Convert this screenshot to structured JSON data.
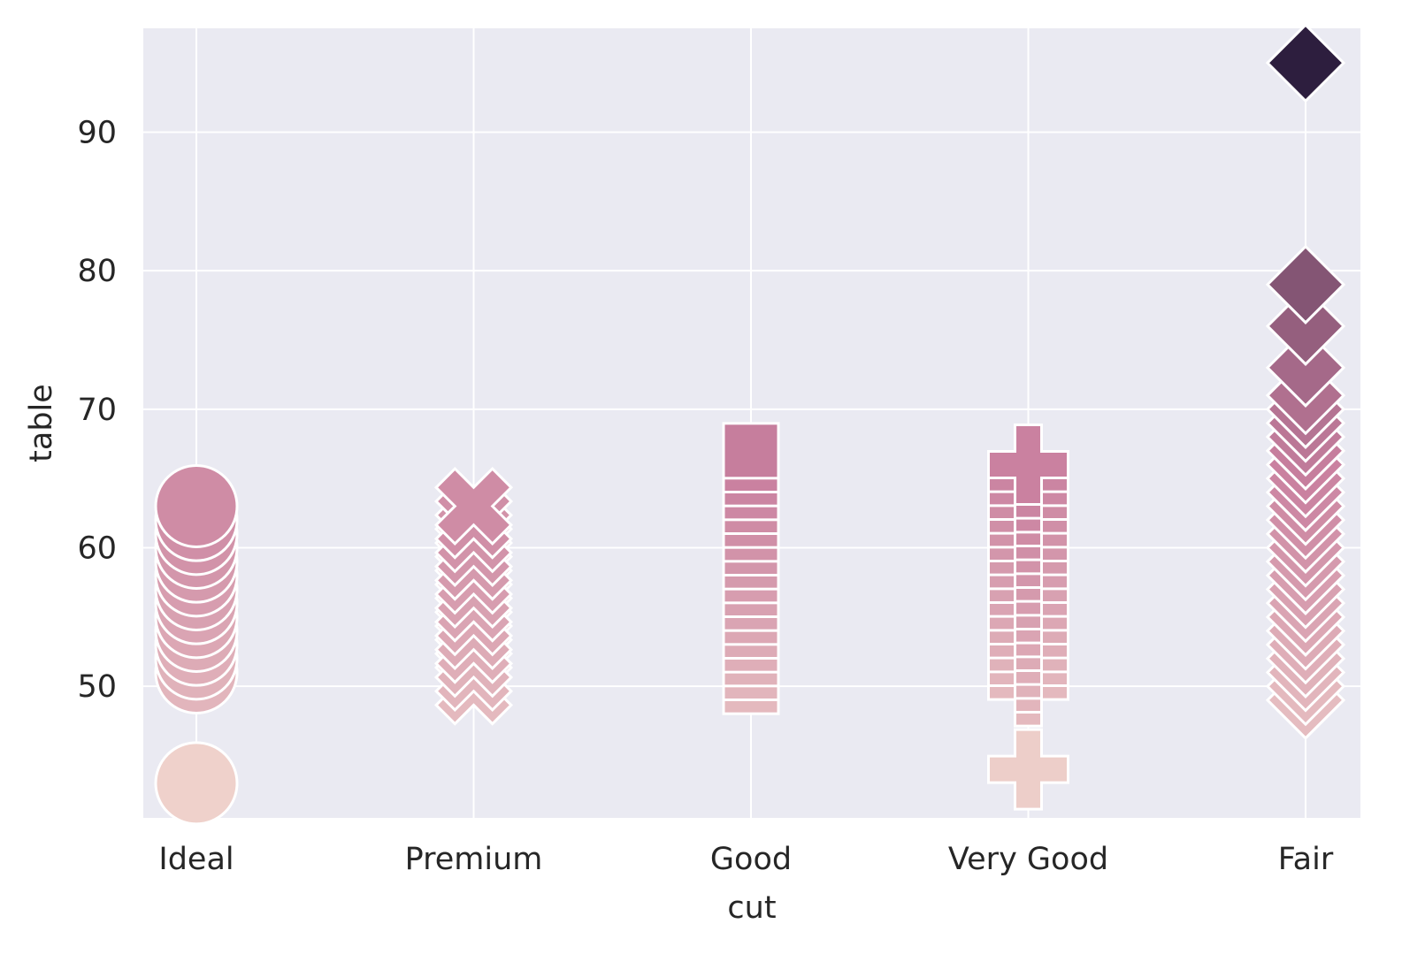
{
  "chart_data": {
    "type": "scatter",
    "title": "",
    "xlabel": "cut",
    "ylabel": "table",
    "categories": [
      "Ideal",
      "Premium",
      "Good",
      "Very Good",
      "Fair"
    ],
    "ylim": [
      40.5,
      97.5
    ],
    "yticks": [
      50,
      60,
      70,
      80,
      90
    ],
    "grid": true,
    "legend": "none",
    "background_color": "#eaeaf2",
    "grid_color": "#ffffff",
    "color_scale": {
      "min": 43,
      "max": 95,
      "low": "#efd1cb",
      "mid": "#c9809f",
      "high": "#2d1e3e"
    },
    "series": [
      {
        "category": "Ideal",
        "marker": "circle",
        "values": [
          43,
          51,
          52,
          53,
          54,
          55,
          56,
          57,
          58,
          59,
          60,
          61,
          62,
          63
        ]
      },
      {
        "category": "Premium",
        "marker": "x",
        "values": [
          50,
          51,
          52,
          53,
          54,
          55,
          56,
          57,
          58,
          59,
          60,
          61,
          62,
          63
        ]
      },
      {
        "category": "Good",
        "marker": "square",
        "values": [
          50,
          51,
          52,
          53,
          54,
          55,
          56,
          57,
          58,
          59,
          60,
          61,
          62,
          63,
          64,
          65,
          66,
          67
        ]
      },
      {
        "category": "Very Good",
        "marker": "plus",
        "values": [
          44,
          50,
          51,
          52,
          53,
          54,
          55,
          56,
          57,
          58,
          59,
          60,
          61,
          62,
          63,
          64,
          65,
          66
        ]
      },
      {
        "category": "Fair",
        "marker": "diamond",
        "values": [
          49,
          50,
          51,
          52,
          53,
          54,
          55,
          56,
          57,
          58,
          59,
          60,
          61,
          62,
          63,
          64,
          65,
          66,
          67,
          68,
          69,
          70,
          71,
          73,
          76,
          79,
          95
        ]
      }
    ]
  }
}
